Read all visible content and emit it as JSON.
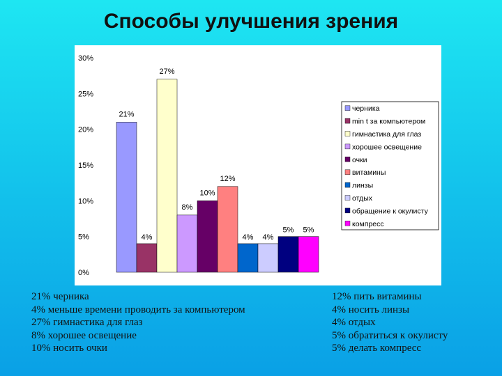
{
  "title": "Способы улучшения зрения",
  "chart_data": {
    "type": "bar",
    "categories": [
      "черника",
      "min t за компьютером",
      "гимнастика для глаз",
      "хорошее освещение",
      "очки",
      "витамины",
      "линзы",
      "отдых",
      "обращение к окулисту",
      "компресс"
    ],
    "values": [
      21,
      4,
      27,
      8,
      10,
      12,
      4,
      4,
      5,
      5
    ],
    "data_labels": [
      "21%",
      "4%",
      "27%",
      "8%",
      "10%",
      "12%",
      "4%",
      "4%",
      "5%",
      "5%"
    ],
    "colors": [
      "#9999ff",
      "#993366",
      "#ffffcc",
      "#cc99ff",
      "#660066",
      "#ff8080",
      "#0066cc",
      "#ccccff",
      "#000080",
      "#ff00ff"
    ],
    "y_ticks": [
      "0%",
      "5%",
      "10%",
      "15%",
      "20%",
      "25%",
      "30%"
    ],
    "ylim": [
      0,
      30
    ],
    "grid": false,
    "legend": "right",
    "title": "",
    "xlabel": "",
    "ylabel": ""
  },
  "notes_left": [
    "21% черника",
    "4% меньше времени проводить за компьютером",
    "27% гимнастика для глаз",
    "8% хорошее освещение",
    "10% носить очки"
  ],
  "notes_right": [
    "12% пить витамины",
    "4% носить линзы",
    "4% отдых",
    "5% обратиться к окулисту",
    "5% делать компресс"
  ]
}
